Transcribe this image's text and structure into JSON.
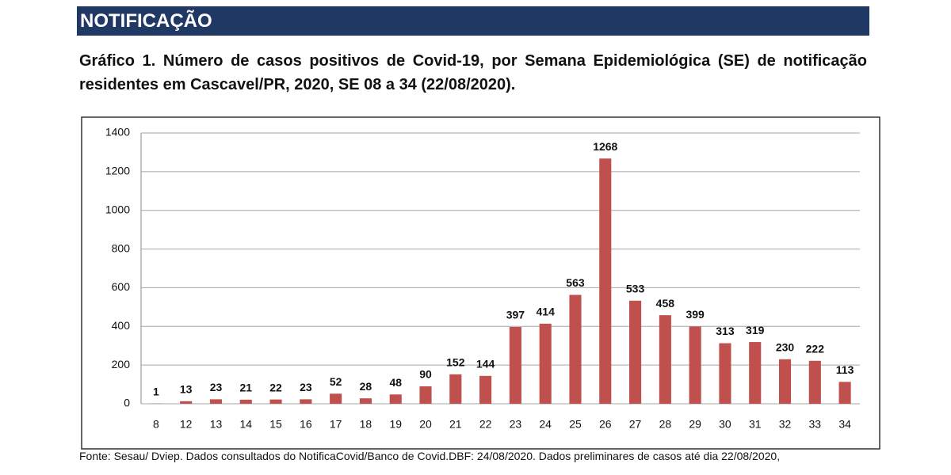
{
  "section": "NOTIFICAÇÃO",
  "chart_data": {
    "type": "bar",
    "title": "Gráfico 1. Número de casos positivos de Covid-19, por Semana Epidemiológica (SE) de notificação residentes em Cascavel/PR, 2020, SE 08 a 34 (22/08/2020).",
    "categories": [
      "8",
      "12",
      "13",
      "14",
      "15",
      "16",
      "17",
      "18",
      "19",
      "20",
      "21",
      "22",
      "23",
      "24",
      "25",
      "26",
      "27",
      "28",
      "29",
      "30",
      "31",
      "32",
      "33",
      "34"
    ],
    "values": [
      1,
      13,
      23,
      21,
      22,
      23,
      52,
      28,
      48,
      90,
      152,
      144,
      397,
      414,
      563,
      1268,
      533,
      458,
      399,
      313,
      319,
      230,
      222,
      113
    ],
    "color": "#c0504d",
    "ylim": [
      0,
      1400
    ],
    "yticks": [
      0,
      200,
      400,
      600,
      800,
      1000,
      1200,
      1400
    ],
    "grid": true
  },
  "source": "Fonte: Sesau/ Dviep. Dados consultados do NotificaCovid/Banco de Covid.DBF: 24/08/2020. Dados preliminares de casos até dia 22/08/2020,"
}
